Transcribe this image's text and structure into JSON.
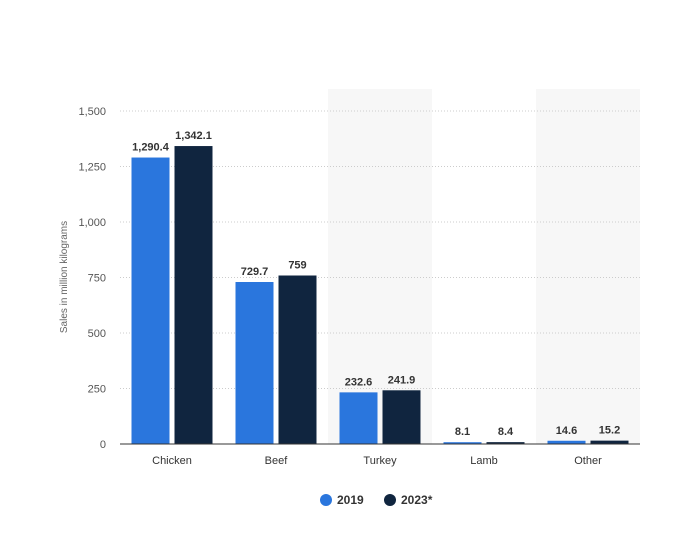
{
  "chart_data": {
    "type": "bar",
    "categories": [
      "Chicken",
      "Beef",
      "Turkey",
      "Lamb",
      "Other"
    ],
    "series": [
      {
        "name": "2019",
        "values": [
          1290.4,
          729.7,
          232.6,
          8.1,
          14.6
        ],
        "labels": [
          "1,290.4",
          "729.7",
          "232.6",
          "8.1",
          "14.6"
        ],
        "color": "#2a76dd"
      },
      {
        "name": "2023*",
        "values": [
          1342.1,
          759,
          241.9,
          8.4,
          15.2
        ],
        "labels": [
          "1,342.1",
          "759",
          "241.9",
          "8.4",
          "15.2"
        ],
        "color": "#10253f"
      }
    ],
    "title": "",
    "xlabel": "",
    "ylabel": "Sales in million kilograms",
    "ylim": [
      0,
      1500
    ],
    "yticks": [
      0,
      250,
      500,
      750,
      1000,
      1250,
      1500
    ],
    "ytick_labels": [
      "0",
      "250",
      "500",
      "750",
      "1,000",
      "1,250",
      "1,500"
    ],
    "grid": true,
    "shaded_categories": [
      "Turkey",
      "Other"
    ],
    "shade_color": "#f7f7f7",
    "legend_position": "bottom-center"
  }
}
